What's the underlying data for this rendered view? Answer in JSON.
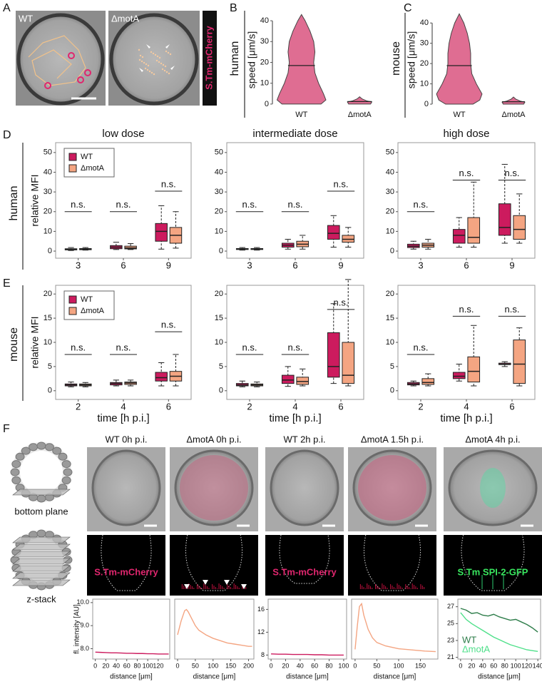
{
  "panel_labels": [
    "A",
    "B",
    "C",
    "D",
    "E",
    "F"
  ],
  "panel_a": {
    "images": [
      "WT",
      "ΔmotA"
    ],
    "channel": "S.Tm-mCherry"
  },
  "row_labels": [
    "human",
    "mouse",
    "human",
    "mouse"
  ],
  "panel_f": {
    "images": [
      "WT 0h p.i.",
      "ΔmotA 0h p.i.",
      "WT 2h p.i.",
      "ΔmotA 1.5h p.i.",
      "ΔmotA 4h p.i."
    ],
    "schemes": [
      "bottom plane",
      "z-stack"
    ],
    "channels": [
      "S.Tm-mCherry",
      "S.Tm-mCherry",
      "S.Tm SPI-2-GFP"
    ]
  },
  "chart_data": [
    {
      "type": "violin",
      "ylabel": "speed [μm/s]",
      "categories": [
        "WT",
        "ΔmotA"
      ],
      "color": "#d9537f",
      "ylim": [
        -1.4,
        43.8
      ],
      "yticks": [
        0,
        10,
        20,
        30,
        40
      ],
      "violins": [
        {
          "median": 18.5,
          "density_y": [
            0,
            2,
            5,
            10,
            15,
            20,
            25,
            30,
            35,
            40,
            43
          ],
          "density": [
            0.8,
            1,
            0.9,
            0.7,
            0.55,
            0.5,
            0.55,
            0.5,
            0.35,
            0.15,
            0
          ]
        },
        {
          "median": 1.2,
          "density_y": [
            0,
            1,
            1.5,
            2.5,
            3.5
          ],
          "density": [
            0.45,
            0.5,
            0.3,
            0.1,
            0
          ]
        }
      ]
    },
    {
      "type": "violin",
      "ylabel": "speed [μm/s]",
      "categories": [
        "WT",
        "ΔmotA"
      ],
      "color": "#d9537f",
      "ylim": [
        -1.4,
        45
      ],
      "yticks": [
        0,
        10,
        20,
        30,
        40
      ],
      "violins": [
        {
          "median": 19,
          "density_y": [
            0,
            2,
            5,
            10,
            15,
            20,
            25,
            30,
            35,
            40,
            44.5
          ],
          "density": [
            0.6,
            0.9,
            1,
            0.75,
            0.55,
            0.5,
            0.5,
            0.45,
            0.35,
            0.2,
            0
          ]
        },
        {
          "median": 1.2,
          "density_y": [
            0,
            1,
            1.5,
            2.5,
            3.5
          ],
          "density": [
            0.45,
            0.5,
            0.3,
            0.1,
            0
          ]
        }
      ]
    },
    {
      "type": "box",
      "title": "low dose",
      "ylabel": "relative MFI",
      "legend": "upper left",
      "categories": [
        "3",
        "6",
        "9"
      ],
      "ylim": [
        -3.6,
        55
      ],
      "yticks": [
        0,
        10,
        20,
        30,
        40,
        50
      ],
      "series": [
        {
          "name": "WT",
          "color": "#cc1b5e",
          "boxes": [
            {
              "min": 0.3,
              "q1": 0.6,
              "median": 0.9,
              "q3": 1.2,
              "max": 1.8
            },
            {
              "min": 0.8,
              "q1": 1.2,
              "median": 2,
              "q3": 2.8,
              "max": 4.5
            },
            {
              "min": 1,
              "q1": 5,
              "median": 10,
              "q3": 14,
              "max": 23
            }
          ]
        },
        {
          "name": "ΔmotA",
          "color": "#f4a582",
          "boxes": [
            {
              "min": 0.5,
              "q1": 0.7,
              "median": 1,
              "q3": 1.3,
              "max": 1.8
            },
            {
              "min": 0.8,
              "q1": 1.1,
              "median": 1.6,
              "q3": 2.5,
              "max": 3.8
            },
            {
              "min": 1.5,
              "q1": 4,
              "median": 8,
              "q3": 12,
              "max": 20
            }
          ]
        }
      ],
      "annotations": [
        {
          "text": "n.s.",
          "y": 20
        },
        {
          "text": "n.s.",
          "y": 20
        },
        {
          "text": "n.s.",
          "y": 30.4
        }
      ]
    },
    {
      "type": "box",
      "title": "intermediate dose",
      "categories": [
        "3",
        "6",
        "9"
      ],
      "ylim": [
        -3.6,
        55
      ],
      "yticks": [
        0,
        10,
        20,
        30,
        40,
        50
      ],
      "series": [
        {
          "color": "#cc1b5e",
          "boxes": [
            {
              "min": 0.5,
              "q1": 0.8,
              "median": 1,
              "q3": 1.3,
              "max": 1.8
            },
            {
              "min": 1,
              "q1": 2,
              "median": 3,
              "q3": 4,
              "max": 6
            },
            {
              "min": 2,
              "q1": 6,
              "median": 9,
              "q3": 13,
              "max": 18
            }
          ]
        },
        {
          "color": "#f4a582",
          "boxes": [
            {
              "min": 0.5,
              "q1": 0.8,
              "median": 1,
              "q3": 1.3,
              "max": 1.8
            },
            {
              "min": 1,
              "q1": 2.2,
              "median": 3.5,
              "q3": 5,
              "max": 8
            },
            {
              "min": 2,
              "q1": 4.5,
              "median": 6,
              "q3": 8,
              "max": 12
            }
          ]
        }
      ],
      "annotations": [
        {
          "text": "n.s.",
          "y": 20
        },
        {
          "text": "n.s.",
          "y": 20
        },
        {
          "text": "n.s.",
          "y": 30.4
        }
      ]
    },
    {
      "type": "box",
      "title": "high dose",
      "categories": [
        "3",
        "6",
        "9"
      ],
      "ylim": [
        -3.6,
        55
      ],
      "yticks": [
        0,
        10,
        20,
        30,
        40,
        50
      ],
      "series": [
        {
          "color": "#cc1b5e",
          "boxes": [
            {
              "min": 1,
              "q1": 1.8,
              "median": 2.5,
              "q3": 3.5,
              "max": 5
            },
            {
              "min": 2,
              "q1": 4,
              "median": 8,
              "q3": 11,
              "max": 17
            },
            {
              "min": 4,
              "q1": 8,
              "median": 12,
              "q3": 24,
              "max": 44
            }
          ]
        },
        {
          "color": "#f4a582",
          "boxes": [
            {
              "min": 1,
              "q1": 2,
              "median": 3,
              "q3": 4,
              "max": 6
            },
            {
              "min": 2,
              "q1": 4,
              "median": 7,
              "q3": 17,
              "max": 35
            },
            {
              "min": 4,
              "q1": 6,
              "median": 11,
              "q3": 18,
              "max": 29
            }
          ]
        }
      ],
      "annotations": [
        {
          "text": "n.s.",
          "y": 20
        },
        {
          "text": "n.s.",
          "y": 36
        },
        {
          "text": "n.s.",
          "y": 36
        }
      ]
    },
    {
      "type": "box",
      "ylabel": "relative MFI",
      "xlabel": "time [h p.i.]",
      "legend": "upper left",
      "categories": [
        "2",
        "4",
        "6"
      ],
      "ylim": [
        -1.8,
        21.8
      ],
      "yticks": [
        0,
        5,
        10,
        15,
        20
      ],
      "series": [
        {
          "name": "WT",
          "color": "#cc1b5e",
          "boxes": [
            {
              "min": 0.8,
              "q1": 1,
              "median": 1.2,
              "q3": 1.4,
              "max": 1.8
            },
            {
              "min": 1,
              "q1": 1.2,
              "median": 1.5,
              "q3": 1.7,
              "max": 2.2
            },
            {
              "min": 1,
              "q1": 2,
              "median": 2.7,
              "q3": 3.8,
              "max": 5.8
            }
          ]
        },
        {
          "name": "ΔmotA",
          "color": "#f4a582",
          "boxes": [
            {
              "min": 0.8,
              "q1": 1,
              "median": 1.2,
              "q3": 1.4,
              "max": 1.7
            },
            {
              "min": 1,
              "q1": 1.3,
              "median": 1.6,
              "q3": 1.8,
              "max": 2.2
            },
            {
              "min": 1,
              "q1": 2,
              "median": 3,
              "q3": 4,
              "max": 7.5
            }
          ]
        }
      ],
      "annotations": [
        {
          "text": "n.s.",
          "y": 7.5
        },
        {
          "text": "n.s.",
          "y": 7.5
        },
        {
          "text": "n.s.",
          "y": 12.2
        }
      ]
    },
    {
      "type": "box",
      "xlabel": "time [h p.i.]",
      "categories": [
        "2",
        "4",
        "6"
      ],
      "ylim": [
        -1.8,
        21.8
      ],
      "yticks": [
        0,
        5,
        10,
        15,
        20
      ],
      "series": [
        {
          "color": "#cc1b5e",
          "boxes": [
            {
              "min": 0.8,
              "q1": 1,
              "median": 1.2,
              "q3": 1.5,
              "max": 2
            },
            {
              "min": 0.9,
              "q1": 1.5,
              "median": 2.2,
              "q3": 3.2,
              "max": 5
            },
            {
              "min": 1.5,
              "q1": 2.8,
              "median": 5,
              "q3": 12,
              "max": 18
            }
          ]
        },
        {
          "color": "#f4a582",
          "boxes": [
            {
              "min": 0.8,
              "q1": 1,
              "median": 1.2,
              "q3": 1.4,
              "max": 1.8
            },
            {
              "min": 1,
              "q1": 1.3,
              "median": 1.9,
              "q3": 2.8,
              "max": 4.5
            },
            {
              "min": 1,
              "q1": 1.5,
              "median": 3.2,
              "q3": 10,
              "max": 23
            }
          ]
        }
      ],
      "annotations": [
        {
          "text": "n.s.",
          "y": 7.5
        },
        {
          "text": "n.s.",
          "y": 7.5
        },
        {
          "text": "n.s.",
          "y": 16.8
        }
      ]
    },
    {
      "type": "box",
      "xlabel": "time [h p.i.]",
      "categories": [
        "2",
        "4",
        "6"
      ],
      "ylim": [
        -1.8,
        21.8
      ],
      "yticks": [
        0,
        5,
        10,
        15,
        20
      ],
      "series": [
        {
          "color": "#cc1b5e",
          "boxes": [
            {
              "min": 1,
              "q1": 1.2,
              "median": 1.4,
              "q3": 1.7,
              "max": 2
            },
            {
              "min": 2,
              "q1": 2.5,
              "median": 3,
              "q3": 3.8,
              "max": 5.5
            },
            {
              "min": 5,
              "q1": 5.4,
              "median": 5.5,
              "q3": 5.7,
              "max": 6
            }
          ]
        },
        {
          "color": "#f4a582",
          "boxes": [
            {
              "min": 1,
              "q1": 1.3,
              "median": 1.7,
              "q3": 2.5,
              "max": 3.5
            },
            {
              "min": 1,
              "q1": 1.8,
              "median": 4,
              "q3": 7,
              "max": 13.5
            },
            {
              "min": 1,
              "q1": 1.5,
              "median": 5.5,
              "q3": 10.5,
              "max": 13
            }
          ]
        }
      ],
      "annotations": [
        {
          "text": "n.s.",
          "y": 7.5
        },
        {
          "text": "n.s.",
          "y": 15.4
        },
        {
          "text": "n.s.",
          "y": 15.4
        }
      ]
    },
    {
      "type": "line",
      "ylabel": "fl. intensity [AU]",
      "xlabel": "distance [μm]",
      "xlim": [
        -5,
        142
      ],
      "xticks": [
        0,
        20,
        40,
        60,
        80,
        100,
        120
      ],
      "ylim": [
        7.55,
        10.15
      ],
      "yticks": [
        {
          "value": 8,
          "label": "8.0"
        },
        {
          "value": 9,
          "label": "9.0"
        },
        {
          "value": 10,
          "label": "10.0"
        }
      ],
      "x": [
        0,
        10,
        20,
        30,
        40,
        50,
        60,
        70,
        80,
        90,
        100,
        110,
        120,
        130,
        140
      ],
      "series": [
        {
          "color": "#cc1b5e",
          "values": [
            7.85,
            7.84,
            7.83,
            7.82,
            7.82,
            7.81,
            7.8,
            7.8,
            7.79,
            7.79,
            7.78,
            7.78,
            7.77,
            7.77,
            7.77
          ]
        }
      ]
    },
    {
      "type": "line",
      "xlabel": "distance [μm]",
      "xlim": [
        -8,
        215
      ],
      "xticks": [
        0,
        50,
        100,
        150,
        200
      ],
      "ylim": [
        7.55,
        10.15
      ],
      "x": [
        0,
        10,
        20,
        25,
        30,
        40,
        50,
        60,
        80,
        100,
        120,
        140,
        160,
        180,
        200,
        210
      ],
      "series": [
        {
          "color": "#f4a582",
          "values": [
            8.6,
            9.2,
            9.65,
            9.7,
            9.6,
            9.3,
            9.0,
            8.8,
            8.6,
            8.45,
            8.35,
            8.25,
            8.2,
            8.15,
            8.1,
            8.1
          ]
        }
      ]
    },
    {
      "type": "line",
      "xlabel": "distance [μm]",
      "xlim": [
        -4,
        104
      ],
      "xticks": [
        0,
        20,
        40,
        60,
        80,
        100
      ],
      "ylim": [
        7.3,
        17.8
      ],
      "yticks": [
        8,
        12,
        16
      ],
      "x": [
        0,
        10,
        20,
        30,
        40,
        50,
        60,
        70,
        80,
        90,
        100
      ],
      "series": [
        {
          "color": "#cc1b5e",
          "values": [
            8.2,
            8.15,
            8.15,
            8.1,
            8.1,
            8.1,
            8.05,
            8.05,
            8.0,
            8.0,
            8.0
          ]
        }
      ]
    },
    {
      "type": "line",
      "xlabel": "distance [μm]",
      "xlim": [
        -8,
        190
      ],
      "xticks": [
        0,
        50,
        100,
        150
      ],
      "ylim": [
        7.3,
        17.8
      ],
      "x": [
        0,
        5,
        10,
        15,
        20,
        30,
        40,
        50,
        70,
        100,
        130,
        160,
        185
      ],
      "series": [
        {
          "color": "#f4a582",
          "values": [
            9,
            13,
            16.5,
            17,
            15,
            12.5,
            11,
            10.2,
            9.6,
            9.1,
            8.9,
            8.7,
            8.6
          ]
        }
      ]
    },
    {
      "type": "line",
      "xlabel": "distance [μm]",
      "legend": "lower left",
      "xlim": [
        -5,
        145
      ],
      "xticks": [
        0,
        20,
        40,
        60,
        80,
        100,
        120,
        140
      ],
      "ylim": [
        20.8,
        27.9
      ],
      "yticks": [
        21,
        23,
        25,
        27
      ],
      "x": [
        0,
        10,
        20,
        30,
        40,
        50,
        60,
        70,
        80,
        90,
        100,
        110,
        120,
        130,
        140
      ],
      "series": [
        {
          "name": "WT",
          "color": "#2e7d4a",
          "values": [
            26.8,
            26.6,
            26.2,
            26.3,
            26,
            25.9,
            26.1,
            25.8,
            25.6,
            25.4,
            25.5,
            25.2,
            24.9,
            24.5,
            24.0
          ]
        },
        {
          "name": "ΔmotA",
          "color": "#4fe08a",
          "values": [
            26.3,
            25.5,
            25,
            24.6,
            24.2,
            23.8,
            23.4,
            23.1,
            22.8,
            22.5,
            22.3,
            22.1,
            21.9,
            21.8,
            21.7
          ]
        }
      ]
    }
  ]
}
